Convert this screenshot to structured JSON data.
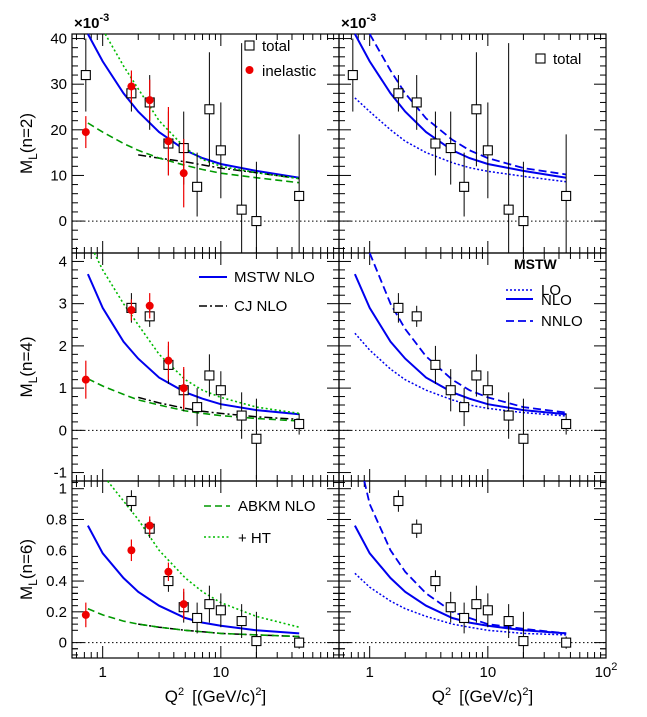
{
  "chart_data": {
    "type": "scatter",
    "x_scale": "log",
    "x_label_main": "Q",
    "x_label_exp": "2",
    "x_label_unit": "[(GeV/c)",
    "x_label_unit_exp": "2",
    "x_label_close": "]",
    "x_tick_labels": [
      {
        "value": 1,
        "label": "1"
      },
      {
        "value": 10,
        "label": "10"
      },
      {
        "value": 100,
        "label": "10",
        "exp": "2"
      }
    ],
    "xlim": [
      0.55,
      100
    ],
    "points_x": [
      0.72,
      1.75,
      2.5,
      3.6,
      4.85,
      6.3,
      8.0,
      10.0,
      15.0,
      20.0,
      46.0
    ],
    "inelastic_x": [
      0.72,
      1.75,
      2.5,
      3.6,
      4.85
    ],
    "legend": {
      "total": "total",
      "inelastic": "inelastic",
      "mstw_nlo": "MSTW NLO",
      "cj_nlo": "CJ NLO",
      "abkm_nlo": "ABKM NLO",
      "ht": "+ HT",
      "mstw_head": "MSTW",
      "lo": "LO",
      "nlo": "NLO",
      "nnlo": "NNLO"
    },
    "rows": [
      {
        "ylabel_main": "M",
        "ylabel_sub": "L",
        "ylabel_rest": "(n=2)",
        "multiplier_base": "×10",
        "multiplier_exp": "-3",
        "ylim": [
          -7,
          41
        ],
        "yticks": [
          {
            "value": 0,
            "label": "0"
          },
          {
            "value": 10,
            "label": "10"
          },
          {
            "value": 20,
            "label": "20"
          },
          {
            "value": 30,
            "label": "30"
          },
          {
            "value": 40,
            "label": "40"
          }
        ],
        "total": [
          {
            "y": 32,
            "lo": 24,
            "hi": 40
          },
          {
            "y": 28,
            "lo": 24,
            "hi": 32
          },
          {
            "y": 26,
            "lo": 20,
            "hi": 32
          },
          {
            "y": 17,
            "lo": 10,
            "hi": 24
          },
          {
            "y": 16,
            "lo": 8,
            "hi": 24
          },
          {
            "y": 7.5,
            "lo": 1,
            "hi": 15
          },
          {
            "y": 24.5,
            "lo": 12,
            "hi": 37
          },
          {
            "y": 15.5,
            "lo": 5,
            "hi": 26
          },
          {
            "y": 2.5,
            "lo": -12,
            "hi": 39
          },
          {
            "y": 0,
            "lo": -12,
            "hi": 13
          },
          {
            "y": 5.5,
            "lo": -8,
            "hi": 19
          }
        ],
        "inelastic": [
          {
            "y": 19.5,
            "lo": 16,
            "hi": 23
          },
          {
            "y": 29.5,
            "lo": 26,
            "hi": 33
          },
          {
            "y": 26.5,
            "lo": 22,
            "hi": 31
          },
          {
            "y": 17.5,
            "lo": 10,
            "hi": 25
          },
          {
            "y": 10.5,
            "lo": 3,
            "hi": 18
          }
        ],
        "curves_left": {
          "mstw_nlo": {
            "x": [
              0.75,
              1,
              1.5,
              2,
              3,
              5,
              7,
              10,
              20,
              46
            ],
            "y": [
              42,
              35,
              28,
              24,
              19.5,
              15.5,
              13.8,
              12.5,
              11,
              9.5
            ]
          },
          "cj_nlo": {
            "x": [
              2,
              3,
              5,
              7,
              10,
              20,
              46
            ],
            "y": [
              14.5,
              13.8,
              13,
              12.3,
              11.6,
              10.6,
              9.3
            ]
          },
          "abkm_nlo": {
            "x": [
              0.75,
              1,
              1.5,
              2,
              3,
              5,
              7,
              10,
              20,
              46
            ],
            "y": [
              21.5,
              19.5,
              17,
              15.5,
              13.8,
              12.2,
              11.3,
              10.5,
              9.5,
              8.4
            ]
          },
          "ht": {
            "x": [
              1.05,
              1.5,
              2,
              3,
              5,
              7,
              10,
              20,
              46
            ],
            "y": [
              41,
              34,
              29,
              22,
              16,
              13.5,
              12,
              10.6,
              9.3
            ]
          }
        },
        "curves_right": {
          "lo": {
            "x": [
              0.75,
              1,
              1.5,
              2,
              3,
              5,
              7,
              10,
              20,
              46
            ],
            "y": [
              27,
              24,
              20,
              17.5,
              15,
              12.8,
              11.7,
              10.9,
              9.8,
              8.6
            ]
          },
          "nlo": {
            "x": [
              0.75,
              1,
              1.5,
              2,
              3,
              5,
              7,
              10,
              20,
              46
            ],
            "y": [
              42,
              35,
              28,
              24,
              19.5,
              15.5,
              13.8,
              12.5,
              11,
              9.5
            ]
          },
          "nnlo": {
            "x": [
              1,
              1.5,
              2,
              3,
              5,
              7,
              10,
              20,
              46
            ],
            "y": [
              42,
              33,
              28,
              22.5,
              17.8,
              15.5,
              13.8,
              11.6,
              10.2
            ]
          }
        }
      },
      {
        "ylabel_main": "M",
        "ylabel_sub": "L",
        "ylabel_rest": "(n=4)",
        "multiplier_base": "",
        "multiplier_exp": "",
        "ylim": [
          -1.2,
          4.2
        ],
        "yticks": [
          {
            "value": -1,
            "label": "-1"
          },
          {
            "value": 0,
            "label": "0"
          },
          {
            "value": 1,
            "label": "1"
          },
          {
            "value": 2,
            "label": "2"
          },
          {
            "value": 3,
            "label": "3"
          },
          {
            "value": 4,
            "label": "4"
          }
        ],
        "total": [
          null,
          {
            "y": 2.9,
            "lo": 2.55,
            "hi": 3.25
          },
          {
            "y": 2.7,
            "lo": 2.45,
            "hi": 2.95
          },
          {
            "y": 1.55,
            "lo": 1.1,
            "hi": 2.0
          },
          {
            "y": 0.95,
            "lo": 0.45,
            "hi": 1.45
          },
          {
            "y": 0.55,
            "lo": 0.1,
            "hi": 1.0
          },
          {
            "y": 1.3,
            "lo": 0.8,
            "hi": 1.8
          },
          {
            "y": 0.95,
            "lo": 0.5,
            "hi": 1.4
          },
          {
            "y": 0.35,
            "lo": -0.2,
            "hi": 0.9
          },
          {
            "y": -0.2,
            "lo": -1.15,
            "hi": 0.75
          },
          {
            "y": 0.15,
            "lo": -0.1,
            "hi": 0.4
          }
        ],
        "inelastic": [
          {
            "y": 1.2,
            "lo": 0.75,
            "hi": 1.65
          },
          {
            "y": 2.85,
            "lo": 2.6,
            "hi": 3.1
          },
          {
            "y": 2.95,
            "lo": 2.65,
            "hi": 3.25
          },
          {
            "y": 1.65,
            "lo": 1.2,
            "hi": 2.1
          },
          {
            "y": 1.0,
            "lo": 0.5,
            "hi": 1.5
          }
        ],
        "curves_left": {
          "mstw_nlo": {
            "x": [
              0.75,
              1,
              1.5,
              2,
              3,
              5,
              7,
              10,
              20,
              46
            ],
            "y": [
              3.7,
              2.9,
              2.1,
              1.7,
              1.25,
              0.9,
              0.75,
              0.62,
              0.48,
              0.38
            ]
          },
          "cj_nlo": {
            "x": [
              2,
              3,
              5,
              7,
              10,
              20,
              46
            ],
            "y": [
              0.78,
              0.65,
              0.52,
              0.45,
              0.4,
              0.32,
              0.26
            ]
          },
          "abkm_nlo": {
            "x": [
              0.75,
              1,
              1.5,
              2,
              3,
              5,
              7,
              10,
              20,
              46
            ],
            "y": [
              1.22,
              1.05,
              0.85,
              0.72,
              0.6,
              0.46,
              0.4,
              0.35,
              0.28,
              0.22
            ]
          },
          "ht": {
            "x": [
              0.85,
              1,
              1.5,
              2,
              3,
              5,
              7,
              10,
              20,
              46
            ],
            "y": [
              4.2,
              3.8,
              3.0,
              2.5,
              1.8,
              1.2,
              0.95,
              0.78,
              0.55,
              0.4
            ]
          }
        },
        "curves_right": {
          "lo": {
            "x": [
              0.75,
              1,
              1.5,
              2,
              3,
              5,
              7,
              10,
              20,
              46
            ],
            "y": [
              2.3,
              1.9,
              1.45,
              1.2,
              0.95,
              0.72,
              0.6,
              0.52,
              0.42,
              0.34
            ]
          },
          "nlo": {
            "x": [
              0.75,
              1,
              1.5,
              2,
              3,
              5,
              7,
              10,
              20,
              46
            ],
            "y": [
              3.7,
              2.9,
              2.1,
              1.7,
              1.25,
              0.9,
              0.75,
              0.62,
              0.48,
              0.38
            ]
          },
          "nnlo": {
            "x": [
              1,
              1.5,
              2,
              3,
              5,
              7,
              10,
              20,
              46
            ],
            "y": [
              4.2,
              3.0,
              2.4,
              1.75,
              1.2,
              0.95,
              0.78,
              0.55,
              0.42
            ]
          }
        }
      },
      {
        "ylabel_main": "M",
        "ylabel_sub": "L",
        "ylabel_rest": "(n=6)",
        "multiplier_base": "",
        "multiplier_exp": "",
        "ylim": [
          -0.1,
          1.05
        ],
        "yticks": [
          {
            "value": 0,
            "label": "0"
          },
          {
            "value": 0.2,
            "label": "0.2"
          },
          {
            "value": 0.4,
            "label": "0.4"
          },
          {
            "value": 0.6,
            "label": "0.6"
          },
          {
            "value": 0.8,
            "label": "0.8"
          },
          {
            "value": 1,
            "label": "1"
          }
        ],
        "total": [
          null,
          {
            "y": 0.92,
            "lo": 0.85,
            "hi": 0.99
          },
          {
            "y": 0.74,
            "lo": 0.68,
            "hi": 0.8
          },
          {
            "y": 0.4,
            "lo": 0.33,
            "hi": 0.47
          },
          {
            "y": 0.23,
            "lo": 0.13,
            "hi": 0.33
          },
          {
            "y": 0.16,
            "lo": 0.06,
            "hi": 0.26
          },
          {
            "y": 0.25,
            "lo": 0.13,
            "hi": 0.37
          },
          {
            "y": 0.21,
            "lo": 0.1,
            "hi": 0.32
          },
          {
            "y": 0.14,
            "lo": 0.03,
            "hi": 0.25
          },
          {
            "y": 0.01,
            "lo": -0.1,
            "hi": 0.2
          },
          {
            "y": 0.0,
            "lo": -0.04,
            "hi": 0.04
          }
        ],
        "inelastic": [
          {
            "y": 0.18,
            "lo": 0.1,
            "hi": 0.26
          },
          {
            "y": 0.6,
            "lo": 0.53,
            "hi": 0.67
          },
          {
            "y": 0.76,
            "lo": 0.7,
            "hi": 0.82
          },
          {
            "y": 0.46,
            "lo": 0.4,
            "hi": 0.52
          },
          {
            "y": 0.25,
            "lo": 0.15,
            "hi": 0.35
          }
        ],
        "curves_left": {
          "mstw_nlo": {
            "x": [
              0.75,
              1,
              1.5,
              2,
              3,
              5,
              7,
              10,
              20,
              46
            ],
            "y": [
              0.76,
              0.58,
              0.42,
              0.33,
              0.24,
              0.16,
              0.13,
              0.11,
              0.08,
              0.06
            ]
          },
          "cj_nlo": {
            "x": [
              2,
              3,
              5,
              7,
              10,
              20,
              46
            ],
            "y": [
              0.12,
              0.1,
              0.08,
              0.07,
              0.06,
              0.05,
              0.04
            ]
          },
          "abkm_nlo": {
            "x": [
              0.75,
              1,
              1.5,
              2,
              3,
              5,
              7,
              10,
              20,
              46
            ],
            "y": [
              0.22,
              0.18,
              0.14,
              0.12,
              0.1,
              0.08,
              0.07,
              0.06,
              0.05,
              0.04
            ]
          },
          "ht": {
            "x": [
              1.1,
              1.5,
              2,
              3,
              5,
              7,
              10,
              20,
              46
            ],
            "y": [
              1.05,
              0.92,
              0.8,
              0.6,
              0.42,
              0.33,
              0.26,
              0.17,
              0.1
            ]
          }
        },
        "curves_right": {
          "lo": {
            "x": [
              0.75,
              1,
              1.5,
              2,
              3,
              5,
              7,
              10,
              20,
              46
            ],
            "y": [
              0.45,
              0.36,
              0.27,
              0.22,
              0.17,
              0.12,
              0.1,
              0.08,
              0.06,
              0.05
            ]
          },
          "nlo": {
            "x": [
              0.75,
              1,
              1.5,
              2,
              3,
              5,
              7,
              10,
              20,
              46
            ],
            "y": [
              0.76,
              0.58,
              0.42,
              0.33,
              0.24,
              0.16,
              0.13,
              0.11,
              0.08,
              0.06
            ]
          },
          "nnlo": {
            "x": [
              0.9,
              1,
              1.5,
              2,
              3,
              5,
              7,
              10,
              20,
              46
            ],
            "y": [
              1.05,
              0.9,
              0.6,
              0.46,
              0.32,
              0.2,
              0.16,
              0.12,
              0.09,
              0.06
            ]
          }
        }
      }
    ],
    "colors": {
      "mstw": "#0000ee",
      "cj": "#000000",
      "abkm": "#009900",
      "ht": "#00bb00",
      "inelastic": "#ee0000",
      "total": "#000000",
      "zero_line": "#000000"
    }
  }
}
